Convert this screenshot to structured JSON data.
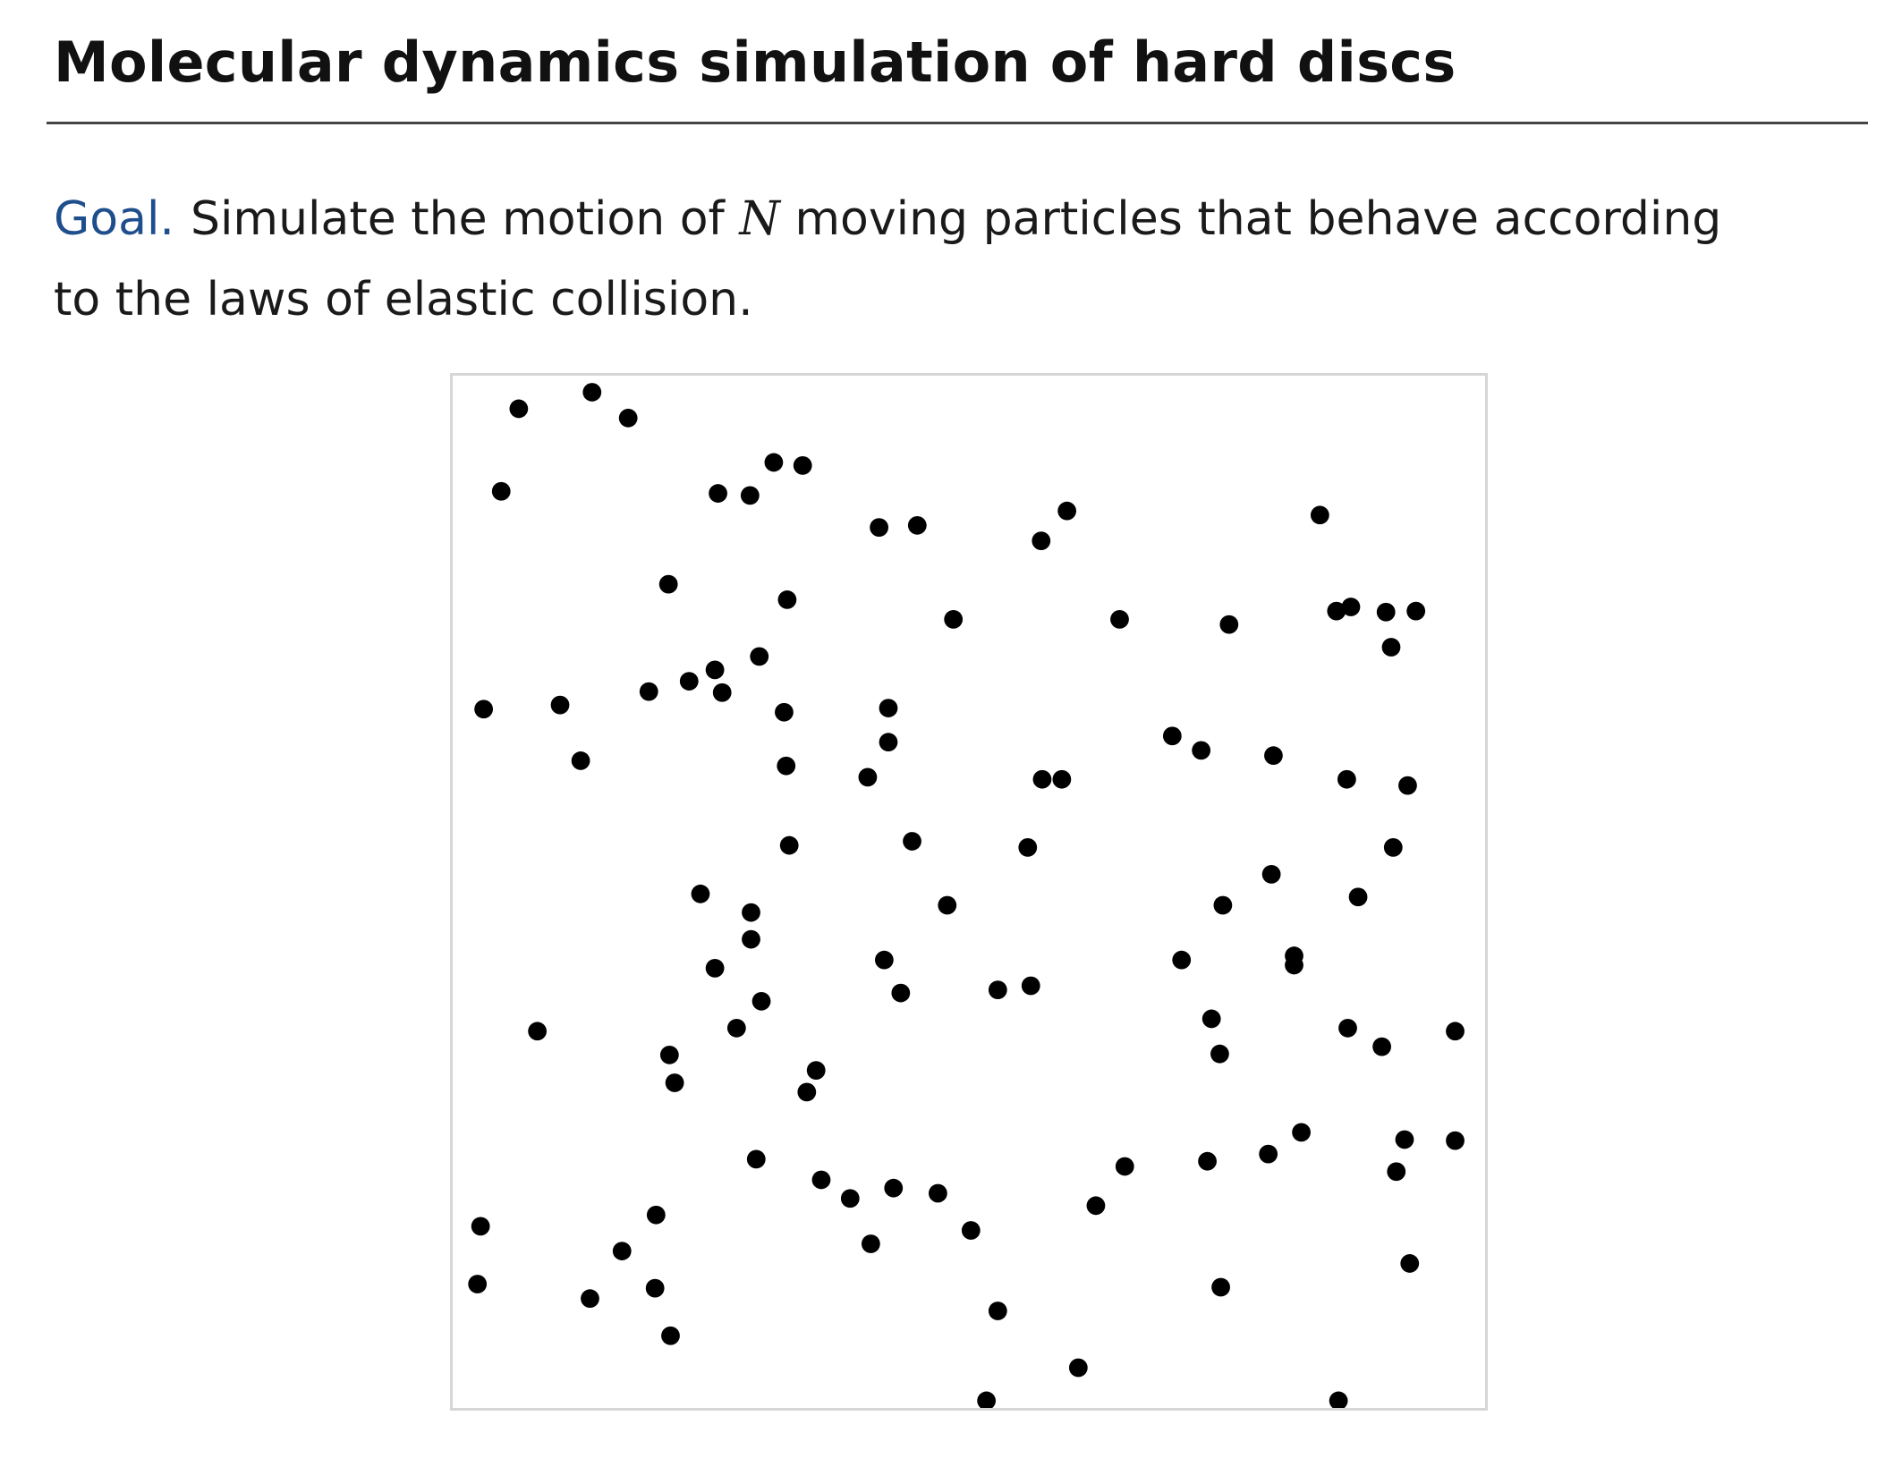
{
  "header": {
    "title": "Molecular dynamics simulation of hard discs"
  },
  "goal": {
    "label": "Goal.",
    "text_before": "Simulate the motion of ",
    "variable": "N",
    "text_after": " moving particles that behave according to the laws of elastic collision."
  },
  "simulation": {
    "particle_color": "#000000",
    "border_color": "#d6d6d6",
    "background": "#ffffff"
  }
}
